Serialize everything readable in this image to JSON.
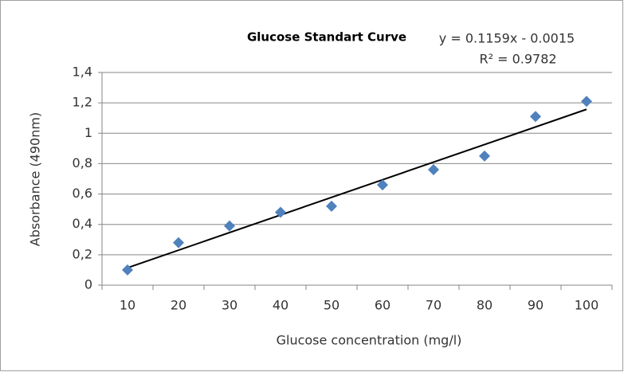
{
  "chart_data": {
    "type": "scatter",
    "title": "Glucose Standart Curve",
    "x_label": "Glucose concentration (mg/l)",
    "y_label": "Absorbance (490nm)",
    "categories": [
      "10",
      "20",
      "30",
      "40",
      "50",
      "60",
      "70",
      "80",
      "90",
      "100"
    ],
    "values": [
      0.1,
      0.28,
      0.39,
      0.48,
      0.52,
      0.66,
      0.76,
      0.85,
      1.11,
      1.21
    ],
    "color": "#4f81bd",
    "ylim": [
      0,
      1.4
    ],
    "yticks": [
      0,
      {
        "value": 0.2,
        "label": "0,2"
      },
      {
        "value": 0.4,
        "label": "0,4"
      },
      {
        "value": 0.6,
        "label": "0,6"
      },
      {
        "value": 0.8,
        "label": "0,8"
      },
      1,
      {
        "value": 1.2,
        "label": "1,2"
      },
      {
        "value": 1.4,
        "label": "1,4"
      }
    ],
    "grid": true,
    "trendline": {
      "label": "y = 0.1159x - 0.0015",
      "r2_label": "R² = 0.9782",
      "slope": 0.1159,
      "intercept": -0.0015
    }
  }
}
